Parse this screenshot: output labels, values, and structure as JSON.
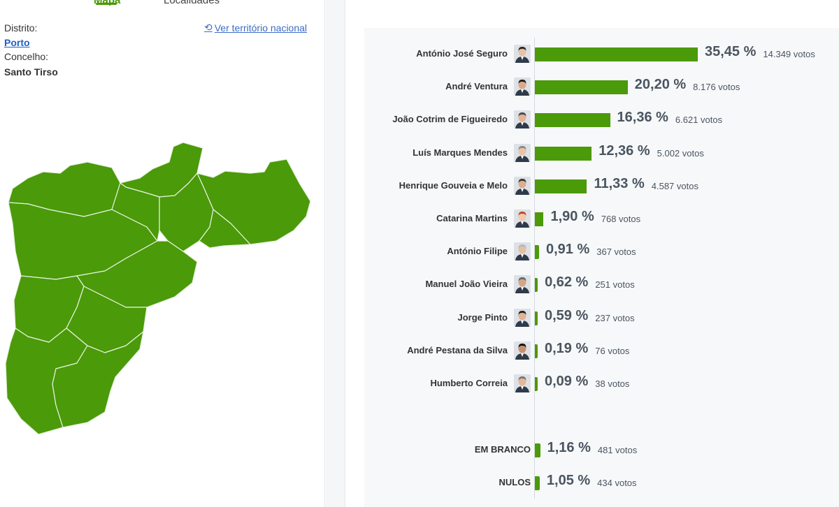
{
  "tabs": {
    "map": "Mapa",
    "localities": "Localidades"
  },
  "location": {
    "district_label": "Distrito:",
    "district_value": "Porto",
    "municipality_label": "Concelho:",
    "municipality_value": "Santo Tirso",
    "national_link": "Ver território nacional"
  },
  "colors": {
    "accent": "#4a9a0a",
    "link": "#1a5fc7",
    "text": "#4a5560"
  },
  "results": [
    {
      "name": "António José Seguro",
      "pct": "35,45 %",
      "votes": "14.349 votos",
      "share": 35.45,
      "avatar": "avatar-seguro"
    },
    {
      "name": "André Ventura",
      "pct": "20,20 %",
      "votes": "8.176 votos",
      "share": 20.2,
      "avatar": "avatar-ventura"
    },
    {
      "name": "João Cotrim de Figueiredo",
      "pct": "16,36 %",
      "votes": "6.621 votos",
      "share": 16.36,
      "avatar": "avatar-cotrim"
    },
    {
      "name": "Luís Marques Mendes",
      "pct": "12,36 %",
      "votes": "5.002 votos",
      "share": 12.36,
      "avatar": "avatar-mendes"
    },
    {
      "name": "Henrique Gouveia e Melo",
      "pct": "11,33 %",
      "votes": "4.587 votos",
      "share": 11.33,
      "avatar": "avatar-gouveia"
    },
    {
      "name": "Catarina Martins",
      "pct": "1,90 %",
      "votes": "768 votos",
      "share": 1.9,
      "avatar": "avatar-martins"
    },
    {
      "name": "António Filipe",
      "pct": "0,91 %",
      "votes": "367 votos",
      "share": 0.91,
      "avatar": "avatar-filipe"
    },
    {
      "name": "Manuel João Vieira",
      "pct": "0,62 %",
      "votes": "251 votos",
      "share": 0.62,
      "avatar": "avatar-vieira"
    },
    {
      "name": "Jorge Pinto",
      "pct": "0,59 %",
      "votes": "237 votos",
      "share": 0.59,
      "avatar": "avatar-pinto"
    },
    {
      "name": "André Pestana da Silva",
      "pct": "0,19 %",
      "votes": "76 votos",
      "share": 0.19,
      "avatar": "avatar-pestana"
    },
    {
      "name": "Humberto Correia",
      "pct": "0,09 %",
      "votes": "38 votos",
      "share": 0.09,
      "avatar": "avatar-correia"
    }
  ],
  "special": [
    {
      "name": "EM BRANCO",
      "pct": "1,16 %",
      "votes": "481 votos",
      "share": 1.16
    },
    {
      "name": "NULOS",
      "pct": "1,05 %",
      "votes": "434 votos",
      "share": 1.05
    }
  ]
}
